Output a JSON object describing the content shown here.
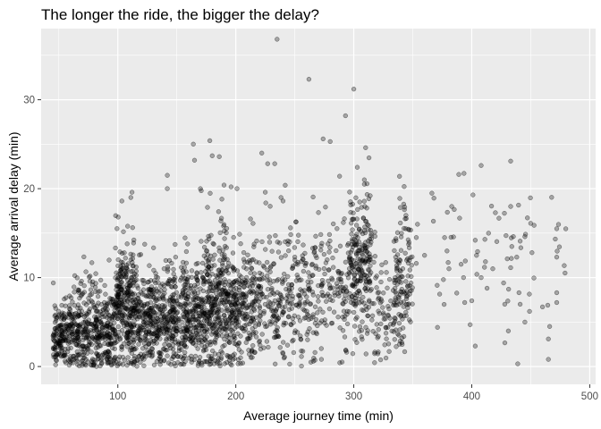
{
  "chart_data": {
    "type": "scatter",
    "title": "The longer the ride, the bigger the delay?",
    "xlabel": "Average journey time (min)",
    "ylabel": "Average arrival delay (min)",
    "xlim": [
      35,
      505
    ],
    "ylim": [
      -2,
      38
    ],
    "x_ticks": [
      100,
      200,
      300,
      400,
      500
    ],
    "y_ticks": [
      0,
      10,
      20,
      30
    ],
    "x_tick_labels": [
      "100",
      "200",
      "300",
      "400",
      "500"
    ],
    "y_tick_labels": [
      "0",
      "10",
      "20",
      "30"
    ],
    "grid": true,
    "point_color": "#000000",
    "point_opacity": 0.3,
    "panel_background": "#ebebeb",
    "grid_color": "#ffffff",
    "clusters": [
      {
        "x_min": 45,
        "x_max": 62,
        "count": 180,
        "y_center": 2.5,
        "y_spread": 2.5
      },
      {
        "x_min": 62,
        "x_max": 80,
        "count": 190,
        "y_center": 3.0,
        "y_spread": 3.0
      },
      {
        "x_min": 80,
        "x_max": 98,
        "count": 210,
        "y_center": 3.2,
        "y_spread": 3.2
      },
      {
        "x_min": 98,
        "x_max": 115,
        "count": 300,
        "y_center": 5.5,
        "y_spread": 4.5
      },
      {
        "x_min": 115,
        "x_max": 135,
        "count": 240,
        "y_center": 4.0,
        "y_spread": 3.5
      },
      {
        "x_min": 135,
        "x_max": 155,
        "count": 220,
        "y_center": 4.0,
        "y_spread": 3.5
      },
      {
        "x_min": 155,
        "x_max": 175,
        "count": 260,
        "y_center": 4.5,
        "y_spread": 4.0
      },
      {
        "x_min": 175,
        "x_max": 195,
        "count": 300,
        "y_center": 6.0,
        "y_spread": 4.5
      },
      {
        "x_min": 195,
        "x_max": 215,
        "count": 220,
        "y_center": 5.0,
        "y_spread": 4.0
      },
      {
        "x_min": 215,
        "x_max": 240,
        "count": 160,
        "y_center": 6.0,
        "y_spread": 4.0
      },
      {
        "x_min": 240,
        "x_max": 270,
        "count": 170,
        "y_center": 6.5,
        "y_spread": 4.5
      },
      {
        "x_min": 270,
        "x_max": 295,
        "count": 110,
        "y_center": 7.0,
        "y_spread": 4.5
      },
      {
        "x_min": 295,
        "x_max": 315,
        "count": 230,
        "y_center": 9.5,
        "y_spread": 4.5
      },
      {
        "x_min": 315,
        "x_max": 335,
        "count": 80,
        "y_center": 6.0,
        "y_spread": 4.0
      },
      {
        "x_min": 335,
        "x_max": 350,
        "count": 120,
        "y_center": 8.5,
        "y_spread": 4.5
      },
      {
        "x_min": 360,
        "x_max": 480,
        "count": 55,
        "y_center": 11.0,
        "y_spread": 5.0
      }
    ],
    "highlighted_points": [
      [
        235,
        36.8
      ],
      [
        262,
        32.3
      ],
      [
        300,
        31.2
      ],
      [
        293,
        28.2
      ],
      [
        164,
        25.0
      ],
      [
        178,
        25.4
      ],
      [
        274,
        25.6
      ],
      [
        280,
        25.3
      ],
      [
        310,
        24.6
      ],
      [
        222,
        24.0
      ],
      [
        180,
        23.7
      ],
      [
        186,
        23.6
      ],
      [
        165,
        23.2
      ],
      [
        433,
        23.1
      ],
      [
        233,
        22.8
      ],
      [
        227,
        22.8
      ],
      [
        408,
        22.6
      ],
      [
        303,
        22.4
      ],
      [
        142,
        21.5
      ],
      [
        389,
        21.6
      ],
      [
        288,
        21.4
      ],
      [
        309,
        21.0
      ],
      [
        309,
        20.5
      ],
      [
        190,
        20.4
      ],
      [
        196,
        20.2
      ],
      [
        112,
        19.6
      ],
      [
        111,
        19.0
      ],
      [
        142,
        20.0
      ],
      [
        170,
        20.0
      ],
      [
        201,
        20.0
      ],
      [
        225,
        19.6
      ],
      [
        401,
        19.3
      ],
      [
        339,
        18.9
      ],
      [
        305,
        18.5
      ],
      [
        383,
        18.0
      ],
      [
        433,
        18.0
      ],
      [
        472,
        15.5
      ],
      [
        472,
        12.3
      ],
      [
        404,
        12.5
      ],
      [
        420,
        17.3
      ],
      [
        450,
        16.1
      ],
      [
        445,
        14.6
      ],
      [
        441,
        14.1
      ],
      [
        377,
        14.5
      ],
      [
        379,
        13.0
      ],
      [
        403,
        14.2
      ],
      [
        400,
        7.4
      ],
      [
        451,
        12.8
      ],
      [
        434,
        13.5
      ],
      [
        380,
        11.7
      ],
      [
        391,
        11.5
      ],
      [
        393,
        10.0
      ],
      [
        408,
        10.0
      ],
      [
        413,
        8.8
      ],
      [
        427,
        9.4
      ],
      [
        440,
        8.3
      ],
      [
        441,
        7.0
      ],
      [
        460,
        6.7
      ],
      [
        466,
        4.5
      ],
      [
        465,
        3.1
      ],
      [
        465,
        0.8
      ],
      [
        439,
        0.3
      ],
      [
        371,
        4.4
      ],
      [
        403,
        2.3
      ],
      [
        431,
        4.0
      ],
      [
        449,
        6.2
      ],
      [
        428,
        7.0
      ],
      [
        472,
        8.3
      ],
      [
        472,
        7.2
      ],
      [
        394,
        7.2
      ],
      [
        353,
        11.6
      ],
      [
        354,
        16.0
      ],
      [
        353,
        14.5
      ],
      [
        360,
        12.5
      ],
      [
        445,
        5.0
      ]
    ]
  }
}
